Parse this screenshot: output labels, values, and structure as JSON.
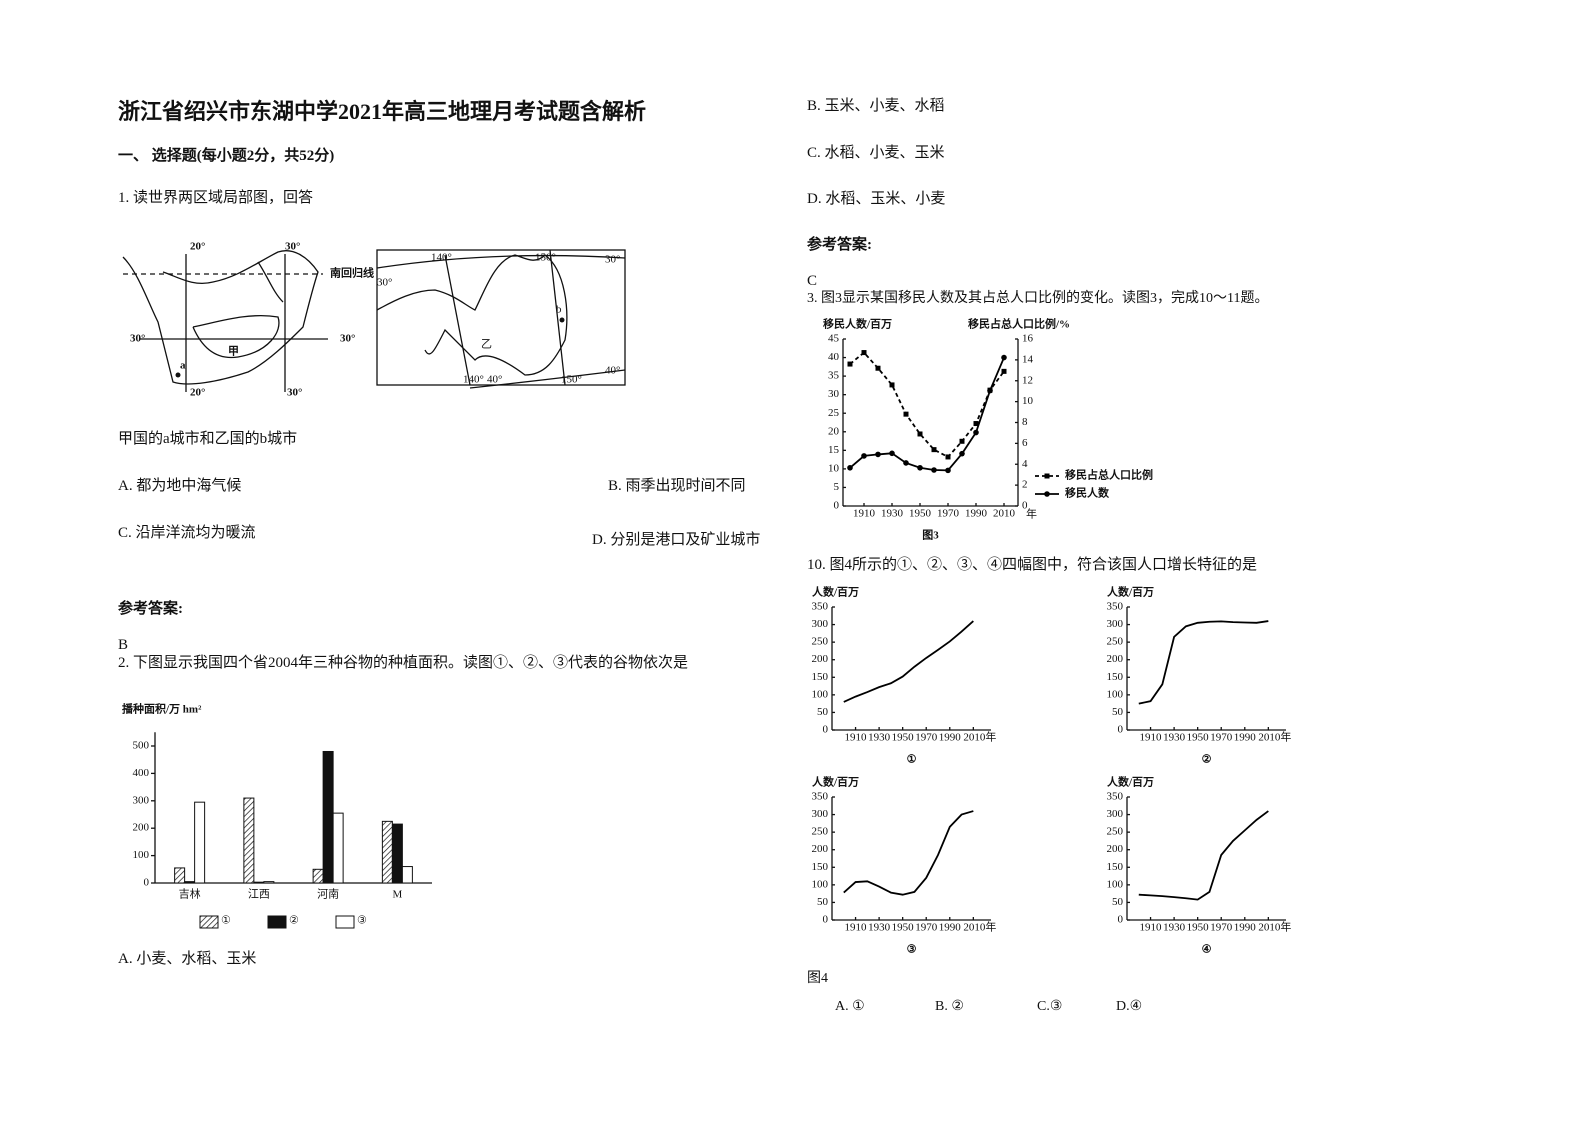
{
  "title": "浙江省绍兴市东湖中学2021年高三地理月考试题含解析",
  "section": "一、 选择题(每小题2分，共52分)",
  "q1": {
    "stem": "1. 读世界两区域局部图，回答",
    "map_left_labels": [
      "20°",
      "30°",
      "南回归线",
      "30°",
      "30°",
      "甲",
      "a",
      "20°",
      "30°"
    ],
    "map_right_labels": [
      "140°",
      "150°",
      "30°",
      "30°",
      "乙",
      "b",
      "140°",
      "40°",
      "150°",
      "40°"
    ],
    "question": "甲国的a城市和乙国的b城市",
    "options": [
      "A. 都为地中海气候",
      "B. 雨季出现时间不同",
      "C. 沿岸洋流均为暖流",
      "D. 分别是港口及矿业城市"
    ],
    "answer_heading": "参考答案:",
    "answer": "B"
  },
  "q2": {
    "stem": "2. 下图显示我国四个省2004年三种谷物的种植面积。读图①、②、③代表的谷物依次是",
    "figure": {
      "type": "bar",
      "ylabel": "播种面积/万 hm²",
      "categories": [
        "吉林",
        "江西",
        "河南",
        "M"
      ],
      "series": [
        {
          "name": "①",
          "fill": "hatch",
          "values": [
            55,
            310,
            50,
            225
          ]
        },
        {
          "name": "②",
          "fill": "solid",
          "values": [
            5,
            3,
            480,
            215
          ]
        },
        {
          "name": "③",
          "fill": "hollow",
          "values": [
            295,
            5,
            255,
            60
          ]
        }
      ],
      "ylim": [
        0,
        550
      ],
      "yticks": [
        0,
        100,
        200,
        300,
        400,
        500
      ]
    },
    "options": [
      "A. 小麦、水稻、玉米",
      "B. 玉米、小麦、水稻",
      "C. 水稻、小麦、玉米",
      "D. 水稻、玉米、小麦"
    ],
    "answer_heading": "参考答案:",
    "answer": "C"
  },
  "q3": {
    "stem": "3. 图3显示某国移民人数及其占总人口比例的变化。读图3，完成10～11题。",
    "figure": {
      "type": "line",
      "ylabel": "移民人数/百万",
      "y2label": "移民占总人口比例/%",
      "xlabel": "年",
      "caption": "图3",
      "x": [
        1900,
        1910,
        1920,
        1930,
        1940,
        1950,
        1960,
        1970,
        1980,
        1990,
        2000,
        2010
      ],
      "series": [
        {
          "name": "移民占总人口比例",
          "axis": "y2",
          "style": "dashed",
          "marker": "square",
          "color": "#000000",
          "values": [
            13.6,
            14.7,
            13.2,
            11.6,
            8.8,
            6.9,
            5.4,
            4.7,
            6.2,
            7.9,
            11.1,
            12.9
          ]
        },
        {
          "name": "移民人数",
          "style": "solid",
          "marker": "circle",
          "color": "#000000",
          "values": [
            10.3,
            13.5,
            13.9,
            14.2,
            11.6,
            10.3,
            9.7,
            9.6,
            14.1,
            19.8,
            31.1,
            40
          ]
        }
      ],
      "xlim": [
        1895,
        2020
      ],
      "xticks": [
        1910,
        1930,
        1950,
        1970,
        1990,
        2010
      ],
      "ylim": [
        0,
        45
      ],
      "yticks": [
        0,
        5,
        10,
        15,
        20,
        25,
        30,
        35,
        40,
        45
      ],
      "y2lim": [
        0,
        16
      ],
      "y2ticks": [
        0,
        2,
        4,
        6,
        8,
        10,
        12,
        14,
        16
      ]
    }
  },
  "q10": {
    "stem": "10. 图4所示的①、②、③、④四幅图中，符合该国人口增长特征的是",
    "figures": [
      {
        "type": "line",
        "ylabel": "人数/百万",
        "caption": "①",
        "x": [
          1900,
          1910,
          1920,
          1930,
          1940,
          1950,
          1960,
          1970,
          1980,
          1990,
          2000,
          2010
        ],
        "series": [
          {
            "color": "#000000",
            "values": [
              80,
              95,
              108,
              122,
              133,
              152,
              180,
              205,
              228,
              252,
              280,
              310
            ]
          }
        ],
        "xlim": [
          1890,
          2025
        ],
        "xticks": [
          1910,
          1930,
          1950,
          1970,
          1990,
          {
            "value": 2010,
            "label": "2010年"
          }
        ],
        "ylim": [
          0,
          350
        ],
        "yticks": [
          0,
          50,
          100,
          150,
          200,
          250,
          300,
          350
        ]
      },
      {
        "type": "line",
        "ylabel": "人数/百万",
        "caption": "②",
        "x": [
          1900,
          1910,
          1920,
          1930,
          1940,
          1950,
          1960,
          1970,
          1980,
          1990,
          2000,
          2010
        ],
        "series": [
          {
            "color": "#000000",
            "values": [
              75,
              82,
              130,
              265,
              295,
              305,
              308,
              309,
              307,
              306,
              305,
              310
            ]
          }
        ],
        "xlim": [
          1890,
          2025
        ],
        "xticks": [
          1910,
          1930,
          1950,
          1970,
          1990,
          {
            "value": 2010,
            "label": "2010年"
          }
        ],
        "ylim": [
          0,
          350
        ],
        "yticks": [
          0,
          50,
          100,
          150,
          200,
          250,
          300,
          350
        ]
      },
      {
        "type": "line",
        "ylabel": "人数/百万",
        "caption": "③",
        "x": [
          1900,
          1910,
          1920,
          1930,
          1940,
          1950,
          1960,
          1970,
          1980,
          1990,
          2000,
          2010
        ],
        "series": [
          {
            "color": "#000000",
            "values": [
              78,
              108,
              110,
              95,
              78,
              72,
              80,
              120,
              185,
              265,
              300,
              310
            ]
          }
        ],
        "xlim": [
          1890,
          2025
        ],
        "xticks": [
          1910,
          1930,
          1950,
          1970,
          1990,
          {
            "value": 2010,
            "label": "2010年"
          }
        ],
        "ylim": [
          0,
          350
        ],
        "yticks": [
          0,
          50,
          100,
          150,
          200,
          250,
          300,
          350
        ]
      },
      {
        "type": "line",
        "ylabel": "人数/百万",
        "caption": "④",
        "x": [
          1900,
          1910,
          1920,
          1930,
          1940,
          1950,
          1960,
          1970,
          1980,
          1990,
          2000,
          2010
        ],
        "series": [
          {
            "color": "#000000",
            "values": [
              72,
              70,
              68,
              65,
              62,
              58,
              80,
              185,
              225,
              255,
              285,
              310
            ]
          }
        ],
        "xlim": [
          1890,
          2025
        ],
        "xticks": [
          1910,
          1930,
          1950,
          1970,
          1990,
          {
            "value": 2010,
            "label": "2010年"
          }
        ],
        "ylim": [
          0,
          350
        ],
        "yticks": [
          0,
          50,
          100,
          150,
          200,
          250,
          300,
          350
        ]
      }
    ],
    "figure_label": "图4",
    "options": [
      "A. ①",
      "B. ②",
      "C.③",
      "D.④"
    ]
  }
}
